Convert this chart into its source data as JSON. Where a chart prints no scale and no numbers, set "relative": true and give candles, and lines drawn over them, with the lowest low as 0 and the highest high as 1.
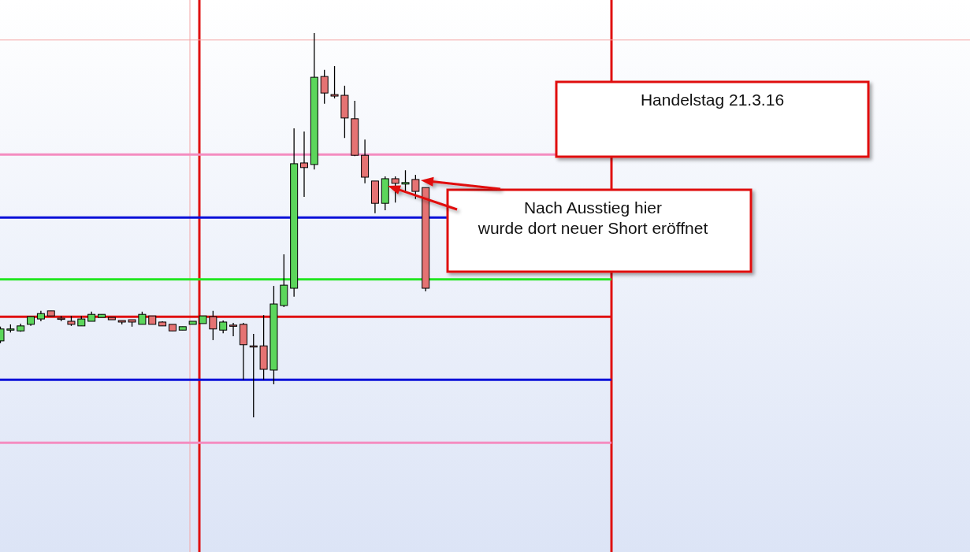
{
  "chart_data": {
    "type": "candlestick",
    "relative": true,
    "categories": [
      null,
      null,
      null,
      null,
      null,
      null,
      null,
      null,
      null,
      null,
      null,
      null,
      null,
      null,
      null,
      null,
      null,
      null,
      null,
      null,
      null,
      null,
      null,
      null,
      null,
      null,
      null,
      null,
      null,
      null,
      null,
      null,
      null,
      null,
      null,
      null,
      null,
      null,
      null,
      null,
      null,
      null,
      null
    ],
    "ohlc": [
      [
        0.199,
        0.236,
        0.193,
        0.23
      ],
      [
        0.227,
        0.242,
        0.221,
        0.23
      ],
      [
        0.225,
        0.244,
        0.223,
        0.238
      ],
      [
        0.242,
        0.262,
        0.238,
        0.262
      ],
      [
        0.256,
        0.277,
        0.25,
        0.27
      ],
      [
        0.277,
        0.277,
        0.264,
        0.264
      ],
      [
        0.258,
        0.264,
        0.25,
        0.258
      ],
      [
        0.25,
        0.264,
        0.238,
        0.242
      ],
      [
        0.238,
        0.264,
        0.238,
        0.256
      ],
      [
        0.25,
        0.275,
        0.25,
        0.268
      ],
      [
        0.26,
        0.268,
        0.26,
        0.268
      ],
      [
        0.26,
        0.26,
        0.254,
        0.254
      ],
      [
        0.252,
        0.252,
        0.242,
        0.248
      ],
      [
        0.254,
        0.254,
        0.236,
        0.248
      ],
      [
        0.242,
        0.275,
        0.242,
        0.268
      ],
      [
        0.264,
        0.264,
        0.242,
        0.242
      ],
      [
        0.248,
        0.25,
        0.238,
        0.238
      ],
      [
        0.242,
        0.242,
        0.225,
        0.225
      ],
      [
        0.227,
        0.236,
        0.227,
        0.236
      ],
      [
        0.242,
        0.25,
        0.242,
        0.25
      ],
      [
        0.244,
        0.264,
        0.244,
        0.264
      ],
      [
        0.262,
        0.277,
        0.201,
        0.23
      ],
      [
        0.227,
        0.252,
        0.219,
        0.248
      ],
      [
        0.24,
        0.246,
        0.211,
        0.24
      ],
      [
        0.242,
        0.246,
        0.098,
        0.189
      ],
      [
        0.186,
        0.217,
        0,
        0.186
      ],
      [
        0.186,
        0.266,
        0.098,
        0.125
      ],
      [
        0.123,
        0.342,
        0.086,
        0.295
      ],
      [
        0.291,
        0.424,
        0.287,
        0.344
      ],
      [
        0.336,
        0.752,
        0.314,
        0.66
      ],
      [
        0.662,
        0.744,
        0.574,
        0.65
      ],
      [
        0.658,
        1,
        0.645,
        0.885
      ],
      [
        0.887,
        0.904,
        0.816,
        0.844
      ],
      [
        0.84,
        0.914,
        0.83,
        0.836
      ],
      [
        0.838,
        0.863,
        0.727,
        0.779
      ],
      [
        0.777,
        0.824,
        0.68,
        0.682
      ],
      [
        0.682,
        0.723,
        0.609,
        0.625
      ],
      [
        0.615,
        0.615,
        0.531,
        0.557
      ],
      [
        0.557,
        0.627,
        0.539,
        0.621
      ],
      [
        0.621,
        0.627,
        0.559,
        0.609
      ],
      [
        0.607,
        0.643,
        0.588,
        0.611
      ],
      [
        0.619,
        0.631,
        0.568,
        0.588
      ],
      [
        0.598,
        0.598,
        0.328,
        0.336
      ]
    ],
    "colors": [
      "#5cd65c",
      "#5cd65c",
      "#5cd65c",
      "#5cd65c",
      "#5cd65c",
      "#e57373",
      "#e57373",
      "#e57373",
      "#5cd65c",
      "#5cd65c",
      "#5cd65c",
      "#e57373",
      "#e57373",
      "#e57373",
      "#5cd65c",
      "#e57373",
      "#e57373",
      "#e57373",
      "#5cd65c",
      "#5cd65c",
      "#5cd65c",
      "#e57373",
      "#5cd65c",
      "#e57373",
      "#e57373",
      "#e57373",
      "#e57373",
      "#5cd65c",
      "#5cd65c",
      "#5cd65c",
      "#e57373",
      "#5cd65c",
      "#e57373",
      "#e57373",
      "#e57373",
      "#e57373",
      "#e57373",
      "#e57373",
      "#5cd65c",
      "#e57373",
      "#5cd65c",
      "#e57373",
      "#e57373"
    ],
    "ref_lines": [
      {
        "axis": "y",
        "value": 0.982,
        "color": "#f4a6a6"
      },
      {
        "axis": "y",
        "value": 0.684,
        "color": "#f48cc0"
      },
      {
        "axis": "y",
        "value": 0.52,
        "color": "#0a10d8"
      },
      {
        "axis": "y",
        "value": 0.359,
        "color": "#22e622"
      },
      {
        "axis": "y",
        "value": 0.262,
        "color": "#e01010"
      },
      {
        "axis": "y",
        "value": 0.098,
        "color": "#0a10d8"
      },
      {
        "axis": "y",
        "value": -0.066,
        "color": "#f48cc0"
      }
    ],
    "annotations": [
      "Handelstag 21.3.16",
      "Nach Ausstieg hier\nwurde dort neuer Short eröffnet"
    ]
  }
}
